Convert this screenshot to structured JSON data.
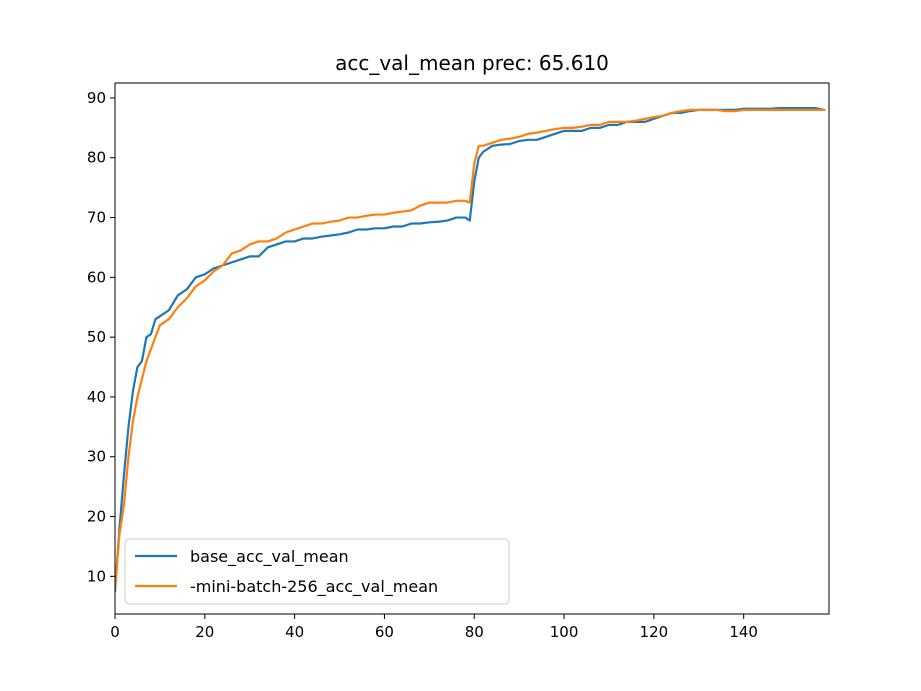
{
  "chart_data": {
    "type": "line",
    "title": "acc_val_mean prec: 65.610",
    "xlabel": "",
    "ylabel": "",
    "xlim": [
      0,
      159
    ],
    "ylim": [
      3.7,
      92.5
    ],
    "xticks": [
      0,
      20,
      40,
      60,
      80,
      100,
      120,
      140
    ],
    "yticks": [
      10,
      20,
      30,
      40,
      50,
      60,
      70,
      80,
      90
    ],
    "grid": false,
    "legend_position": "lower-left",
    "series": [
      {
        "name": "base_acc_val_mean",
        "color": "#1f77b4",
        "x": [
          0,
          1,
          2,
          3,
          4,
          5,
          6,
          7,
          8,
          9,
          10,
          12,
          14,
          16,
          18,
          20,
          22,
          24,
          26,
          28,
          30,
          32,
          34,
          36,
          38,
          40,
          42,
          44,
          46,
          48,
          50,
          52,
          54,
          56,
          58,
          60,
          62,
          64,
          66,
          68,
          70,
          72,
          74,
          76,
          78,
          79,
          80,
          81,
          82,
          84,
          86,
          88,
          90,
          92,
          94,
          96,
          98,
          100,
          102,
          104,
          106,
          108,
          110,
          112,
          114,
          116,
          118,
          120,
          122,
          124,
          126,
          128,
          130,
          132,
          134,
          136,
          138,
          140,
          142,
          144,
          146,
          148,
          150,
          152,
          154,
          156,
          158
        ],
        "values": [
          7.5,
          18,
          27,
          35,
          41,
          45,
          46,
          50,
          50.5,
          53,
          53.5,
          54.5,
          57,
          58,
          60,
          60.5,
          61.5,
          62,
          62.5,
          63,
          63.5,
          63.5,
          65,
          65.5,
          66,
          66,
          66.5,
          66.5,
          66.8,
          67,
          67.2,
          67.5,
          68,
          68,
          68.2,
          68.2,
          68.5,
          68.5,
          69,
          69,
          69.2,
          69.3,
          69.5,
          70,
          70,
          69.5,
          76,
          80,
          81,
          82,
          82.2,
          82.3,
          82.8,
          83,
          83,
          83.5,
          84,
          84.5,
          84.5,
          84.5,
          85,
          85,
          85.5,
          85.5,
          86,
          86,
          86,
          86.5,
          87,
          87.5,
          87.5,
          87.8,
          88,
          88,
          88,
          88,
          88,
          88.2,
          88.2,
          88.2,
          88.2,
          88.3,
          88.3,
          88.3,
          88.3,
          88.3,
          88
        ]
      },
      {
        "name": "-mini-batch-256_acc_val_mean",
        "color": "#ff7f0e",
        "x": [
          0,
          1,
          2,
          3,
          4,
          5,
          6,
          7,
          8,
          9,
          10,
          12,
          14,
          16,
          18,
          20,
          22,
          24,
          26,
          28,
          30,
          32,
          34,
          36,
          38,
          40,
          42,
          44,
          46,
          48,
          50,
          52,
          54,
          56,
          58,
          60,
          62,
          64,
          66,
          68,
          70,
          72,
          74,
          76,
          78,
          79,
          80,
          81,
          82,
          84,
          86,
          88,
          90,
          92,
          94,
          96,
          98,
          100,
          102,
          104,
          106,
          108,
          110,
          112,
          114,
          116,
          118,
          120,
          122,
          124,
          126,
          128,
          130,
          132,
          134,
          136,
          138,
          140,
          142,
          144,
          146,
          148,
          150,
          152,
          154,
          156,
          158
        ],
        "values": [
          8,
          17,
          22,
          30,
          36,
          40,
          43,
          46,
          48,
          50,
          52,
          53,
          55,
          56.5,
          58.5,
          59.5,
          61,
          62,
          64,
          64.5,
          65.5,
          66,
          66,
          66.5,
          67.5,
          68,
          68.5,
          69,
          69,
          69.3,
          69.5,
          70,
          70,
          70.3,
          70.5,
          70.5,
          70.8,
          71,
          71.2,
          72,
          72.5,
          72.5,
          72.5,
          72.8,
          72.8,
          72.5,
          79,
          82,
          82,
          82.5,
          83,
          83.2,
          83.5,
          84,
          84.2,
          84.5,
          84.8,
          85,
          85,
          85.2,
          85.5,
          85.5,
          86,
          86,
          86,
          86.2,
          86.5,
          86.8,
          87,
          87.5,
          87.8,
          88,
          88,
          88,
          88,
          87.8,
          87.8,
          88,
          88,
          88,
          88,
          88,
          88,
          88,
          88,
          88,
          88
        ]
      }
    ]
  }
}
